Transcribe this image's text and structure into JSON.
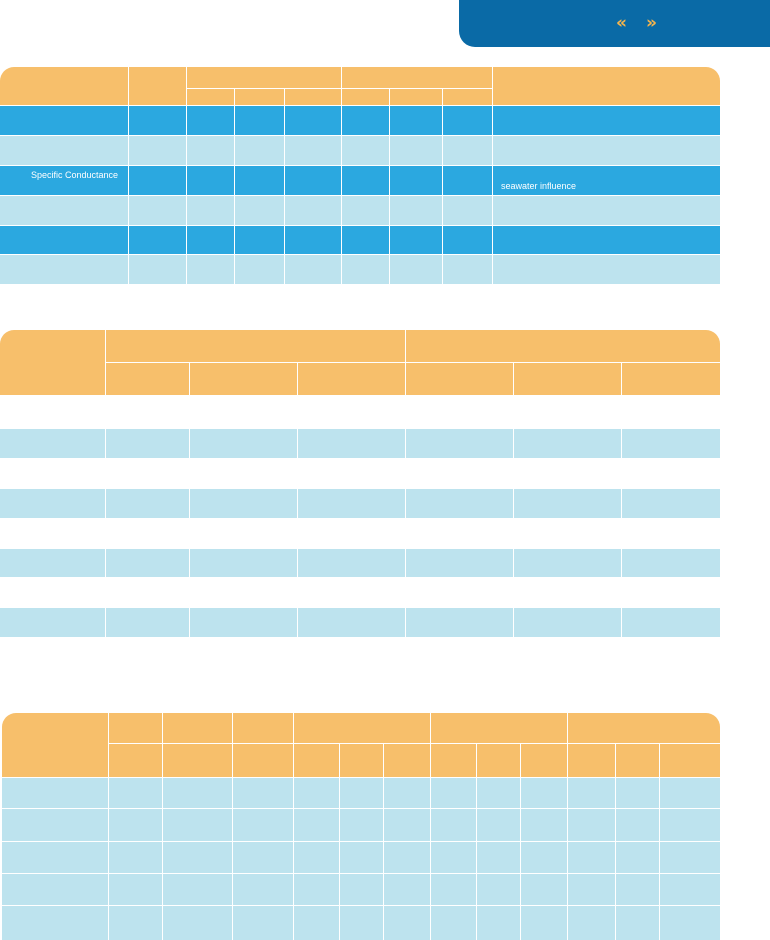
{
  "navigation": {
    "prev_label": "«",
    "next_label": "»"
  },
  "table1": {
    "row_3_label": "Specific Conductance",
    "row_3_note": "seawater influence"
  },
  "colors": {
    "header_orange": "#f7bf6b",
    "row_blue": "#2ba8e0",
    "row_light_blue": "#bde3ee",
    "top_bar": "#0a6aa6",
    "nav_arrows": "#f6b54c"
  }
}
